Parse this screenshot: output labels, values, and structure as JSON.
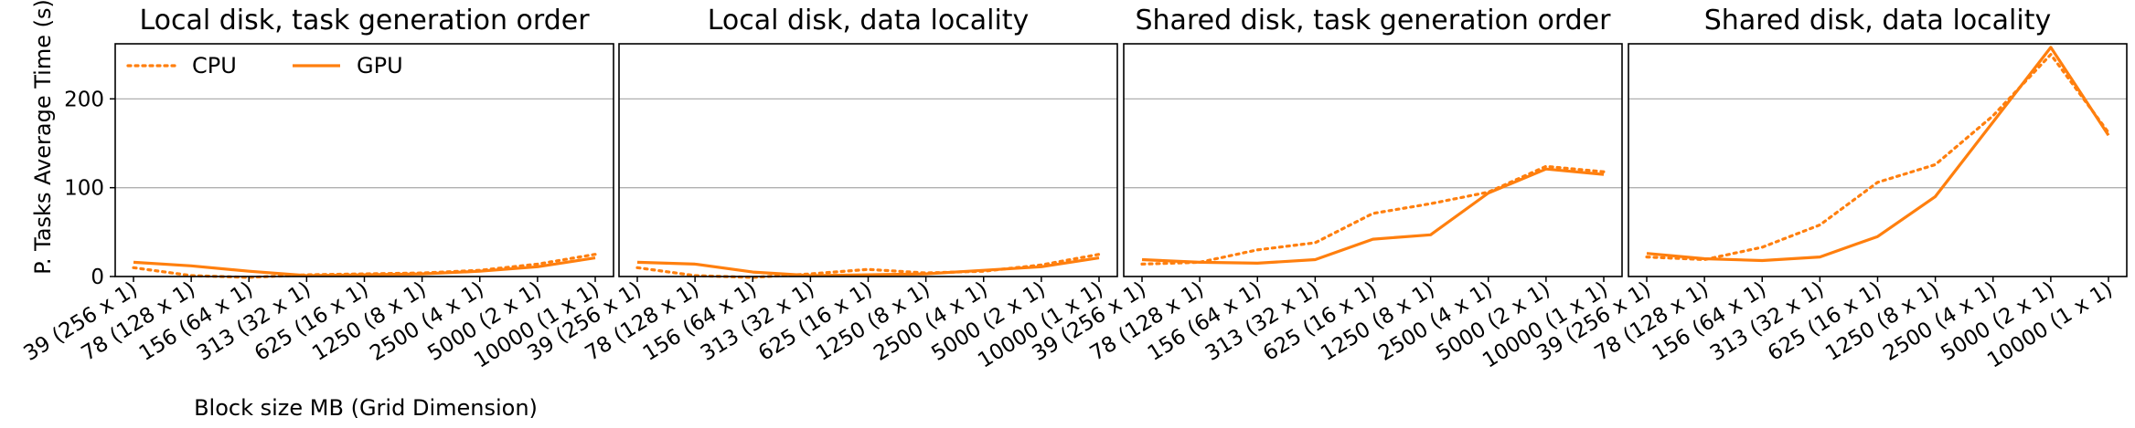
{
  "figure": {
    "ylabel": "P. Tasks Average Time (s)",
    "xlabel": "Block size MB (Grid Dimension)"
  },
  "legend": {
    "placement": "upper-left of first panel",
    "entries": [
      {
        "name": "CPU",
        "style": "dotted"
      },
      {
        "name": "GPU",
        "style": "solid"
      }
    ]
  },
  "colors": {
    "series": "#ff7f0e",
    "grid": "#b0b0b0",
    "axes": "#000000"
  },
  "chart_data": [
    {
      "type": "line",
      "title": "Local disk, task generation order",
      "categories": [
        "39 (256 x 1)",
        "78 (128 x 1)",
        "156 (64 x 1)",
        "313 (32 x 1)",
        "625 (16 x 1)",
        "1250 (8 x 1)",
        "2500 (4 x 1)",
        "5000 (2 x 1)",
        "10000 (1 x 1)"
      ],
      "yticks": [
        0,
        100,
        200
      ],
      "ylim": [
        0,
        262
      ],
      "grid": "horizontal",
      "series": [
        {
          "name": "CPU",
          "style": "dotted",
          "values": [
            10,
            1,
            -1,
            2,
            3,
            4,
            7,
            14,
            25
          ]
        },
        {
          "name": "GPU",
          "style": "solid",
          "values": [
            16,
            12,
            6,
            1,
            2,
            3,
            6,
            11,
            21
          ]
        }
      ]
    },
    {
      "type": "line",
      "title": "Local disk, data locality",
      "categories": [
        "39 (256 x 1)",
        "78 (128 x 1)",
        "156 (64 x 1)",
        "313 (32 x 1)",
        "625 (16 x 1)",
        "1250 (8 x 1)",
        "2500 (4 x 1)",
        "5000 (2 x 1)",
        "10000 (1 x 1)"
      ],
      "yticks": [
        0,
        100,
        200
      ],
      "ylim": [
        0,
        262
      ],
      "grid": "horizontal",
      "series": [
        {
          "name": "CPU",
          "style": "dotted",
          "values": [
            10,
            1,
            -1,
            3,
            8,
            4,
            6,
            13,
            25
          ]
        },
        {
          "name": "GPU",
          "style": "solid",
          "values": [
            16,
            14,
            5,
            1,
            2,
            3,
            7,
            11,
            21
          ]
        }
      ]
    },
    {
      "type": "line",
      "title": "Shared disk, task generation order",
      "categories": [
        "39 (256 x 1)",
        "78 (128 x 1)",
        "156 (64 x 1)",
        "313 (32 x 1)",
        "625 (16 x 1)",
        "1250 (8 x 1)",
        "2500 (4 x 1)",
        "5000 (2 x 1)",
        "10000 (1 x 1)"
      ],
      "yticks": [
        0,
        100,
        200
      ],
      "ylim": [
        0,
        262
      ],
      "grid": "horizontal",
      "series": [
        {
          "name": "CPU",
          "style": "dotted",
          "values": [
            14,
            16,
            30,
            38,
            71,
            82,
            95,
            124,
            118
          ]
        },
        {
          "name": "GPU",
          "style": "solid",
          "values": [
            19,
            16,
            15,
            19,
            42,
            47,
            94,
            121,
            115
          ]
        }
      ]
    },
    {
      "type": "line",
      "title": "Shared disk, data locality",
      "categories": [
        "39 (256 x 1)",
        "78 (128 x 1)",
        "156 (64 x 1)",
        "313 (32 x 1)",
        "625 (16 x 1)",
        "1250 (8 x 1)",
        "2500 (4 x 1)",
        "5000 (2 x 1)",
        "10000 (1 x 1)"
      ],
      "yticks": [
        0,
        100,
        200
      ],
      "ylim": [
        0,
        262
      ],
      "grid": "horizontal",
      "series": [
        {
          "name": "CPU",
          "style": "dotted",
          "values": [
            22,
            19,
            33,
            58,
            106,
            126,
            181,
            250,
            162
          ]
        },
        {
          "name": "GPU",
          "style": "solid",
          "values": [
            26,
            20,
            18,
            22,
            45,
            90,
            174,
            258,
            159
          ]
        }
      ]
    }
  ]
}
